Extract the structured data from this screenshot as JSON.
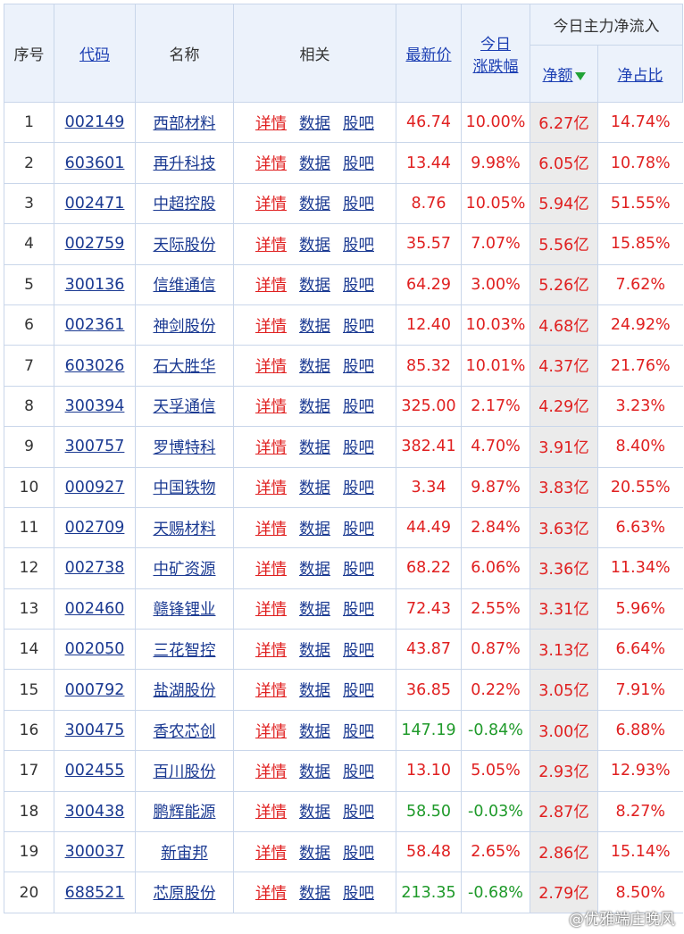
{
  "header": {
    "seq": "序号",
    "code": "代码",
    "name": "名称",
    "related": "相关",
    "price": "最新价",
    "change_line1": "今日",
    "change_line2": "涨跌幅",
    "flow_group": "今日主力净流入",
    "net_amount": "净额",
    "net_ratio": "净占比"
  },
  "related_links": {
    "detail": "详情",
    "data": "数据",
    "forum": "股吧"
  },
  "rows": [
    {
      "idx": "1",
      "code": "002149",
      "name": "西部材料",
      "price": "46.74",
      "change": "10.00%",
      "amount": "6.27亿",
      "ratio": "14.74%",
      "trend": "up"
    },
    {
      "idx": "2",
      "code": "603601",
      "name": "再升科技",
      "price": "13.44",
      "change": "9.98%",
      "amount": "6.05亿",
      "ratio": "10.78%",
      "trend": "up"
    },
    {
      "idx": "3",
      "code": "002471",
      "name": "中超控股",
      "price": "8.76",
      "change": "10.05%",
      "amount": "5.94亿",
      "ratio": "51.55%",
      "trend": "up"
    },
    {
      "idx": "4",
      "code": "002759",
      "name": "天际股份",
      "price": "35.57",
      "change": "7.07%",
      "amount": "5.56亿",
      "ratio": "15.85%",
      "trend": "up"
    },
    {
      "idx": "5",
      "code": "300136",
      "name": "信维通信",
      "price": "64.29",
      "change": "3.00%",
      "amount": "5.26亿",
      "ratio": "7.62%",
      "trend": "up"
    },
    {
      "idx": "6",
      "code": "002361",
      "name": "神剑股份",
      "price": "12.40",
      "change": "10.03%",
      "amount": "4.68亿",
      "ratio": "24.92%",
      "trend": "up"
    },
    {
      "idx": "7",
      "code": "603026",
      "name": "石大胜华",
      "price": "85.32",
      "change": "10.01%",
      "amount": "4.37亿",
      "ratio": "21.76%",
      "trend": "up"
    },
    {
      "idx": "8",
      "code": "300394",
      "name": "天孚通信",
      "price": "325.00",
      "change": "2.17%",
      "amount": "4.29亿",
      "ratio": "3.23%",
      "trend": "up"
    },
    {
      "idx": "9",
      "code": "300757",
      "name": "罗博特科",
      "price": "382.41",
      "change": "4.70%",
      "amount": "3.91亿",
      "ratio": "8.40%",
      "trend": "up"
    },
    {
      "idx": "10",
      "code": "000927",
      "name": "中国铁物",
      "price": "3.34",
      "change": "9.87%",
      "amount": "3.83亿",
      "ratio": "20.55%",
      "trend": "up"
    },
    {
      "idx": "11",
      "code": "002709",
      "name": "天赐材料",
      "price": "44.49",
      "change": "2.84%",
      "amount": "3.63亿",
      "ratio": "6.63%",
      "trend": "up"
    },
    {
      "idx": "12",
      "code": "002738",
      "name": "中矿资源",
      "price": "68.22",
      "change": "6.06%",
      "amount": "3.36亿",
      "ratio": "11.34%",
      "trend": "up"
    },
    {
      "idx": "13",
      "code": "002460",
      "name": "赣锋锂业",
      "price": "72.43",
      "change": "2.55%",
      "amount": "3.31亿",
      "ratio": "5.96%",
      "trend": "up"
    },
    {
      "idx": "14",
      "code": "002050",
      "name": "三花智控",
      "price": "43.87",
      "change": "0.87%",
      "amount": "3.13亿",
      "ratio": "6.64%",
      "trend": "up"
    },
    {
      "idx": "15",
      "code": "000792",
      "name": "盐湖股份",
      "price": "36.85",
      "change": "0.22%",
      "amount": "3.05亿",
      "ratio": "7.91%",
      "trend": "up"
    },
    {
      "idx": "16",
      "code": "300475",
      "name": "香农芯创",
      "price": "147.19",
      "change": "-0.84%",
      "amount": "3.00亿",
      "ratio": "6.88%",
      "trend": "down"
    },
    {
      "idx": "17",
      "code": "002455",
      "name": "百川股份",
      "price": "13.10",
      "change": "5.05%",
      "amount": "2.93亿",
      "ratio": "12.93%",
      "trend": "up"
    },
    {
      "idx": "18",
      "code": "300438",
      "name": "鹏辉能源",
      "price": "58.50",
      "change": "-0.03%",
      "amount": "2.87亿",
      "ratio": "8.27%",
      "trend": "down"
    },
    {
      "idx": "19",
      "code": "300037",
      "name": "新宙邦",
      "price": "58.48",
      "change": "2.65%",
      "amount": "2.86亿",
      "ratio": "15.14%",
      "trend": "up"
    },
    {
      "idx": "20",
      "code": "688521",
      "name": "芯原股份",
      "price": "213.35",
      "change": "-0.68%",
      "amount": "2.79亿",
      "ratio": "8.50%",
      "trend": "down"
    }
  ],
  "colors": {
    "up": "#e02020",
    "down": "#1f9a2a",
    "link": "#1b3a92",
    "header_bg": "#ecf2fb",
    "sort_arrow": "#22a336"
  },
  "sort_icon": "sort-desc-arrow-icon",
  "watermark": "@优雅端庄晚风"
}
